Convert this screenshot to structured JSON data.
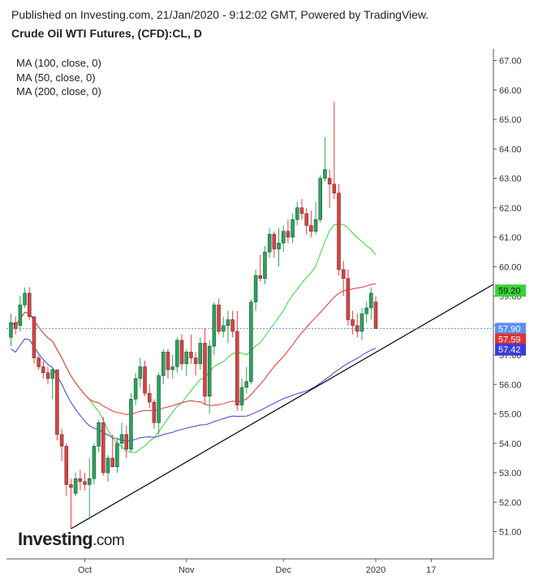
{
  "header": {
    "published": "Published on Investing.com, 21/Jan/2020 - 9:12:02 GMT, Powered by TradingView.",
    "title": "Crude Oil WTI Futures, (CFD):CL, D"
  },
  "legend": {
    "ma100": "MA (100, close, 0)",
    "ma50": "MA (50, close, 0)",
    "ma200": "MA (200, close, 0)"
  },
  "logo": {
    "main": "Investing",
    "suffix": ".com"
  },
  "colors": {
    "up": "#26a65b",
    "down": "#e0403f",
    "ma50": "#39d239",
    "ma100": "#e03232",
    "ma200": "#3c3cd4",
    "trendline": "#000000",
    "current": "#5b8ff0"
  },
  "chart_data": {
    "type": "candlestick",
    "title": "Crude Oil WTI Futures, (CFD):CL, D",
    "ylim": [
      50.2,
      67.5
    ],
    "y_ticks": [
      "67.00",
      "66.00",
      "65.00",
      "64.00",
      "63.00",
      "62.00",
      "61.00",
      "60.00",
      "59.00",
      "58.00",
      "57.00",
      "56.00",
      "55.00",
      "54.00",
      "53.00",
      "52.00",
      "51.00"
    ],
    "x_ticks": [
      {
        "label": "Oct",
        "bar": 16
      },
      {
        "label": "Nov",
        "bar": 38
      },
      {
        "label": "Dec",
        "bar": 59
      },
      {
        "label": "2020",
        "bar": 79
      },
      {
        "label": "17",
        "bar": 91
      }
    ],
    "price_labels": [
      {
        "text": "59.20",
        "value": 59.2,
        "color": "#39d239"
      },
      {
        "text": "57.90",
        "value": 57.9,
        "color": "#5b8ff0"
      },
      {
        "text": "57.59",
        "value": 57.59,
        "color": "#e03232"
      },
      {
        "text": "57.42",
        "value": 57.42,
        "color": "#3c3cd4"
      }
    ],
    "current_price": 57.9,
    "candles": [
      [
        57.6,
        58.4,
        57.3,
        58.1
      ],
      [
        58.1,
        58.3,
        57.7,
        57.9
      ],
      [
        58.0,
        59.0,
        57.8,
        58.7
      ],
      [
        58.7,
        59.3,
        58.6,
        59.1
      ],
      [
        59.1,
        59.3,
        58.2,
        58.3
      ],
      [
        58.3,
        58.3,
        56.7,
        56.9
      ],
      [
        56.9,
        57.0,
        56.5,
        56.6
      ],
      [
        56.6,
        56.8,
        56.2,
        56.4
      ],
      [
        56.4,
        56.6,
        56.0,
        56.2
      ],
      [
        56.2,
        56.6,
        55.5,
        56.5
      ],
      [
        56.5,
        56.5,
        54.1,
        54.3
      ],
      [
        54.3,
        54.5,
        53.4,
        53.9
      ],
      [
        53.9,
        54.0,
        52.2,
        52.6
      ],
      [
        52.6,
        52.8,
        51.1,
        52.5
      ],
      [
        52.3,
        53.0,
        52.2,
        52.8
      ],
      [
        52.8,
        53.1,
        52.4,
        52.7
      ],
      [
        52.7,
        53.0,
        52.4,
        52.6
      ],
      [
        52.6,
        53.5,
        51.4,
        52.8
      ],
      [
        52.8,
        54.0,
        52.6,
        53.9
      ],
      [
        53.9,
        54.8,
        53.7,
        54.7
      ],
      [
        54.7,
        54.9,
        52.9,
        53.0
      ],
      [
        53.0,
        53.6,
        52.7,
        53.5
      ],
      [
        53.5,
        54.3,
        53.2,
        53.2
      ],
      [
        53.2,
        54.2,
        53.0,
        54.0
      ],
      [
        54.0,
        54.7,
        53.8,
        54.3
      ],
      [
        54.3,
        54.6,
        53.5,
        53.8
      ],
      [
        53.8,
        55.7,
        53.7,
        55.5
      ],
      [
        55.5,
        56.4,
        55.3,
        56.2
      ],
      [
        56.2,
        56.9,
        55.9,
        56.6
      ],
      [
        56.6,
        56.8,
        55.6,
        55.7
      ],
      [
        55.7,
        56.0,
        55.2,
        55.4
      ],
      [
        55.4,
        55.5,
        54.5,
        54.7
      ],
      [
        54.7,
        56.4,
        54.3,
        56.3
      ],
      [
        56.3,
        57.2,
        56.0,
        57.1
      ],
      [
        57.1,
        57.2,
        56.2,
        56.5
      ],
      [
        56.5,
        57.0,
        56.2,
        56.6
      ],
      [
        56.6,
        57.6,
        56.4,
        57.5
      ],
      [
        57.5,
        57.7,
        56.5,
        56.7
      ],
      [
        56.7,
        57.2,
        56.3,
        57.1
      ],
      [
        57.1,
        57.7,
        56.7,
        56.9
      ],
      [
        56.9,
        57.1,
        56.3,
        56.7
      ],
      [
        56.7,
        57.6,
        56.5,
        57.4
      ],
      [
        57.4,
        57.9,
        55.3,
        55.6
      ],
      [
        55.6,
        57.5,
        55.0,
        57.3
      ],
      [
        57.3,
        58.8,
        57.0,
        58.7
      ],
      [
        58.7,
        58.9,
        57.7,
        57.8
      ],
      [
        57.8,
        58.3,
        57.6,
        58.0
      ],
      [
        58.0,
        58.5,
        57.4,
        58.2
      ],
      [
        58.2,
        58.5,
        57.6,
        57.8
      ],
      [
        57.8,
        58.5,
        55.1,
        55.3
      ],
      [
        55.3,
        56.2,
        55.1,
        55.9
      ],
      [
        55.9,
        56.6,
        55.7,
        56.1
      ],
      [
        56.1,
        58.9,
        56.0,
        58.8
      ],
      [
        58.8,
        59.9,
        58.5,
        59.7
      ],
      [
        59.7,
        60.4,
        59.5,
        59.6
      ],
      [
        59.6,
        60.7,
        59.4,
        60.5
      ],
      [
        60.5,
        61.3,
        60.3,
        61.1
      ],
      [
        61.1,
        61.2,
        60.3,
        60.6
      ],
      [
        60.6,
        61.3,
        60.0,
        60.8
      ],
      [
        60.8,
        61.4,
        60.5,
        61.2
      ],
      [
        61.2,
        61.6,
        60.8,
        61.0
      ],
      [
        61.0,
        61.8,
        60.8,
        61.6
      ],
      [
        61.6,
        62.2,
        61.4,
        62.0
      ],
      [
        62.0,
        62.3,
        61.6,
        61.8
      ],
      [
        61.8,
        62.0,
        61.1,
        61.4
      ],
      [
        61.4,
        61.9,
        61.0,
        61.2
      ],
      [
        61.2,
        62.2,
        61.1,
        61.6
      ],
      [
        61.6,
        63.1,
        61.5,
        63.0
      ],
      [
        63.0,
        64.4,
        62.9,
        63.3
      ],
      [
        63.0,
        63.3,
        62.0,
        62.8
      ],
      [
        62.8,
        65.6,
        62.3,
        62.5
      ],
      [
        62.5,
        62.8,
        59.7,
        59.9
      ],
      [
        59.9,
        60.2,
        59.0,
        59.6
      ],
      [
        59.6,
        59.9,
        58.0,
        58.2
      ],
      [
        58.2,
        58.5,
        57.7,
        58.0
      ],
      [
        58.0,
        58.4,
        57.6,
        57.8
      ],
      [
        57.8,
        58.6,
        57.5,
        58.4
      ],
      [
        58.4,
        58.8,
        58.1,
        58.6
      ],
      [
        58.6,
        59.3,
        58.2,
        59.1
      ],
      [
        58.8,
        59.0,
        57.9,
        57.9
      ]
    ]
  }
}
